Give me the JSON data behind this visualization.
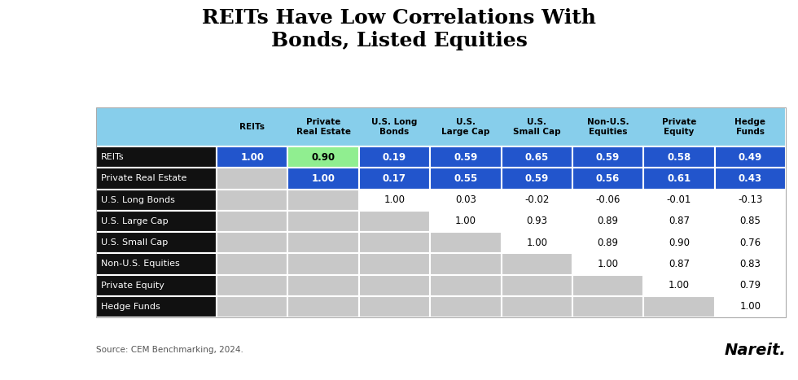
{
  "title": "REITs Have Low Correlations With\nBonds, Listed Equities",
  "source": "Source: CEM Benchmarking, 2024.",
  "col_headers": [
    "REITs",
    "Private\nReal Estate",
    "U.S. Long\nBonds",
    "U.S.\nLarge Cap",
    "U.S.\nSmall Cap",
    "Non-U.S.\nEquities",
    "Private\nEquity",
    "Hedge\nFunds"
  ],
  "row_labels": [
    "REITs",
    "Private Real Estate",
    "U.S. Long Bonds",
    "U.S. Large Cap",
    "U.S. Small Cap",
    "Non-U.S. Equities",
    "Private Equity",
    "Hedge Funds"
  ],
  "data": [
    [
      "1.00",
      "0.90",
      "0.19",
      "0.59",
      "0.65",
      "0.59",
      "0.58",
      "0.49"
    ],
    [
      "",
      "1.00",
      "0.17",
      "0.55",
      "0.59",
      "0.56",
      "0.61",
      "0.43"
    ],
    [
      "",
      "",
      "1.00",
      "0.03",
      "-0.02",
      "-0.06",
      "-0.01",
      "-0.13"
    ],
    [
      "",
      "",
      "",
      "1.00",
      "0.93",
      "0.89",
      "0.87",
      "0.85"
    ],
    [
      "",
      "",
      "",
      "",
      "1.00",
      "0.89",
      "0.90",
      "0.76"
    ],
    [
      "",
      "",
      "",
      "",
      "",
      "1.00",
      "0.87",
      "0.83"
    ],
    [
      "",
      "",
      "",
      "",
      "",
      "",
      "1.00",
      "0.79"
    ],
    [
      "",
      "",
      "",
      "",
      "",
      "",
      "",
      "1.00"
    ]
  ],
  "col_header_bg": "#87CEEB",
  "row_label_bg": "#111111",
  "row_label_text": "#ffffff",
  "blue_highlight": "#2255CC",
  "green_cell": "#90EE90",
  "gray_cell": "#C8C8C8",
  "white_cell": "#ffffff",
  "highlight_rows": [
    0,
    1
  ],
  "nareit_text": "Nareit."
}
